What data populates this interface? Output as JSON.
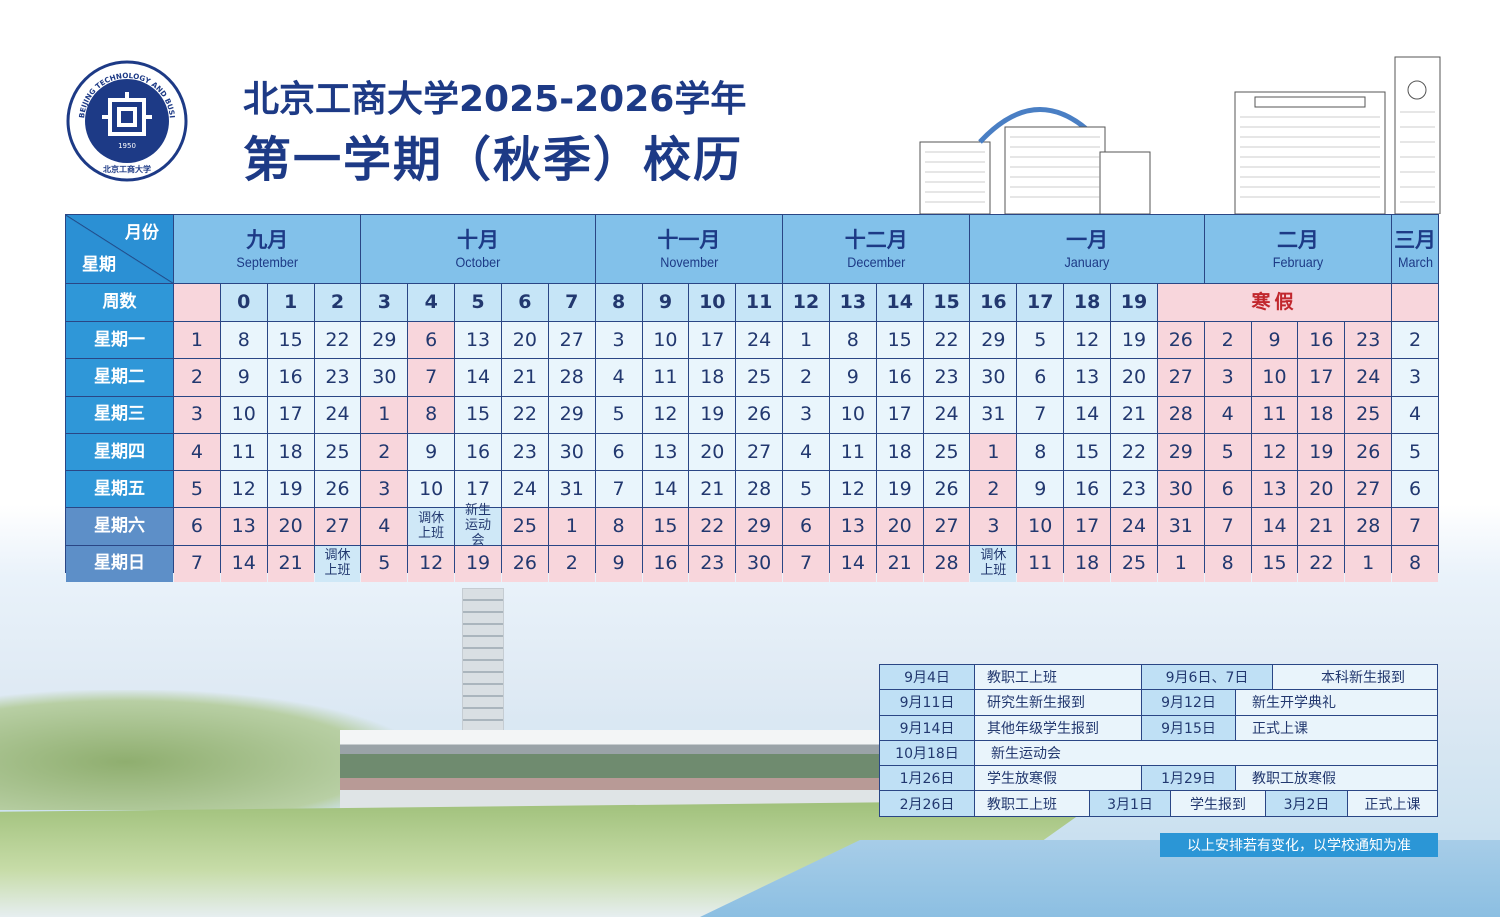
{
  "title": {
    "line1": "北京工商大学2025-2026学年",
    "line2": "第一学期（秋季）校历"
  },
  "logo": {
    "ring_text": "BEIJING TECHNOLOGY AND BUSINESS UNIVERSITY",
    "year": "1950",
    "name_cn": "北京工商大学"
  },
  "colors": {
    "navy": "#1d3a86",
    "holiday": "#f8d6dc",
    "workday": "#e9f5fc",
    "header": "#82c1ea",
    "label": "#2f97d8",
    "winter_text": "#c1272d"
  },
  "calendar": {
    "corner": {
      "month_label": "月份",
      "weekday_label": "星期"
    },
    "week_label": "周数",
    "winter_break_label": "寒假",
    "weekdays": [
      "星期一",
      "星期二",
      "星期三",
      "星期四",
      "星期五",
      "星期六",
      "星期日"
    ],
    "months": [
      {
        "cn": "九月",
        "en": "September",
        "weeks": 4
      },
      {
        "cn": "十月",
        "en": "October",
        "weeks": 5
      },
      {
        "cn": "十一月",
        "en": "November",
        "weeks": 4
      },
      {
        "cn": "十二月",
        "en": "December",
        "weeks": 4
      },
      {
        "cn": "一月",
        "en": "January",
        "weeks": 5
      },
      {
        "cn": "二月",
        "en": "February",
        "weeks": 4
      },
      {
        "cn": "三月",
        "en": "March",
        "weeks": 1
      }
    ],
    "status_legend": {
      "h": "holiday",
      "w": "workday",
      "s": "special"
    },
    "columns": [
      {
        "week": "",
        "week_holiday": true,
        "days": [
          "1",
          "2",
          "3",
          "4",
          "5",
          "6",
          "7"
        ],
        "status": "hhhhhhh"
      },
      {
        "week": "0",
        "days": [
          "8",
          "9",
          "10",
          "11",
          "12",
          "13",
          "14"
        ],
        "status": "wwwwwhh"
      },
      {
        "week": "1",
        "days": [
          "15",
          "16",
          "17",
          "18",
          "19",
          "20",
          "21"
        ],
        "status": "wwwwwhh"
      },
      {
        "week": "2",
        "days": [
          "22",
          "23",
          "24",
          "25",
          "26",
          "27",
          "调休上班"
        ],
        "status": "wwwwwhs"
      },
      {
        "week": "3",
        "days": [
          "29",
          "30",
          "1",
          "2",
          "3",
          "4",
          "5"
        ],
        "status": "wwhhhhh"
      },
      {
        "week": "4",
        "days": [
          "6",
          "7",
          "8",
          "9",
          "10",
          "调休上班",
          "12"
        ],
        "status": "hhhwwsh"
      },
      {
        "week": "5",
        "days": [
          "13",
          "14",
          "15",
          "16",
          "17",
          "新生\n运动会",
          "19"
        ],
        "status": "wwwwwsh"
      },
      {
        "week": "6",
        "days": [
          "20",
          "21",
          "22",
          "23",
          "24",
          "25",
          "26"
        ],
        "status": "wwwwwhh"
      },
      {
        "week": "7",
        "days": [
          "27",
          "28",
          "29",
          "30",
          "31",
          "1",
          "2"
        ],
        "status": "wwwwwhh"
      },
      {
        "week": "8",
        "days": [
          "3",
          "4",
          "5",
          "6",
          "7",
          "8",
          "9"
        ],
        "status": "wwwwwhh"
      },
      {
        "week": "9",
        "days": [
          "10",
          "11",
          "12",
          "13",
          "14",
          "15",
          "16"
        ],
        "status": "wwwwwhh"
      },
      {
        "week": "10",
        "days": [
          "17",
          "18",
          "19",
          "20",
          "21",
          "22",
          "23"
        ],
        "status": "wwwwwhh"
      },
      {
        "week": "11",
        "days": [
          "24",
          "25",
          "26",
          "27",
          "28",
          "29",
          "30"
        ],
        "status": "wwwwwhh"
      },
      {
        "week": "12",
        "days": [
          "1",
          "2",
          "3",
          "4",
          "5",
          "6",
          "7"
        ],
        "status": "wwwwwhh"
      },
      {
        "week": "13",
        "days": [
          "8",
          "9",
          "10",
          "11",
          "12",
          "13",
          "14"
        ],
        "status": "wwwwwhh"
      },
      {
        "week": "14",
        "days": [
          "15",
          "16",
          "17",
          "18",
          "19",
          "20",
          "21"
        ],
        "status": "wwwwwhh"
      },
      {
        "week": "15",
        "days": [
          "22",
          "23",
          "24",
          "25",
          "26",
          "27",
          "28"
        ],
        "status": "wwwwwhh"
      },
      {
        "week": "16",
        "days": [
          "29",
          "30",
          "31",
          "1",
          "2",
          "3",
          "调休上班"
        ],
        "status": "wwwhhhs"
      },
      {
        "week": "17",
        "days": [
          "5",
          "6",
          "7",
          "8",
          "9",
          "10",
          "11"
        ],
        "status": "wwwwwhh"
      },
      {
        "week": "18",
        "days": [
          "12",
          "13",
          "14",
          "15",
          "16",
          "17",
          "18"
        ],
        "status": "wwwwwhh"
      },
      {
        "week": "19",
        "days": [
          "19",
          "20",
          "21",
          "22",
          "23",
          "24",
          "25"
        ],
        "status": "wwwwwhh"
      },
      {
        "week": null,
        "winter": true,
        "days": [
          "26",
          "27",
          "28",
          "29",
          "30",
          "31",
          "1"
        ],
        "status": "hhhhhhh"
      },
      {
        "week": null,
        "winter": true,
        "days": [
          "2",
          "3",
          "4",
          "5",
          "6",
          "7",
          "8"
        ],
        "status": "hhhhhhh"
      },
      {
        "week": null,
        "winter": true,
        "days": [
          "9",
          "10",
          "11",
          "12",
          "13",
          "14",
          "15"
        ],
        "status": "hhhhhhh"
      },
      {
        "week": null,
        "winter": true,
        "days": [
          "16",
          "17",
          "18",
          "19",
          "20",
          "21",
          "22"
        ],
        "status": "hhhhhhh"
      },
      {
        "week": null,
        "winter": true,
        "days": [
          "23",
          "24",
          "25",
          "26",
          "27",
          "28",
          "1"
        ],
        "status": "hhhhhhh"
      },
      {
        "week": "",
        "week_holiday": true,
        "days": [
          "2",
          "3",
          "4",
          "5",
          "6",
          "7",
          "8"
        ],
        "status": "wwwwwhh"
      }
    ]
  },
  "events": [
    [
      {
        "date": "9月4日",
        "text": "教职工上班"
      },
      {
        "date": "9月6日、7日",
        "text": "本科新生报到"
      }
    ],
    [
      {
        "date": "9月11日",
        "text": "研究生新生报到"
      },
      {
        "date": "9月12日",
        "text": "新生开学典礼"
      }
    ],
    [
      {
        "date": "9月14日",
        "text": "其他年级学生报到"
      },
      {
        "date": "9月15日",
        "text": "正式上课"
      }
    ],
    [
      {
        "date": "10月18日",
        "text": "新生运动会"
      }
    ],
    [
      {
        "date": "1月26日",
        "text": "学生放寒假"
      },
      {
        "date": "1月29日",
        "text": "教职工放寒假"
      }
    ],
    [
      {
        "date": "2月26日",
        "text": "教职工上班"
      },
      {
        "date": "3月1日",
        "text": "学生报到"
      },
      {
        "date": "3月2日",
        "text": "正式上课"
      }
    ]
  ],
  "notice": "以上安排若有变化，以学校通知为准"
}
